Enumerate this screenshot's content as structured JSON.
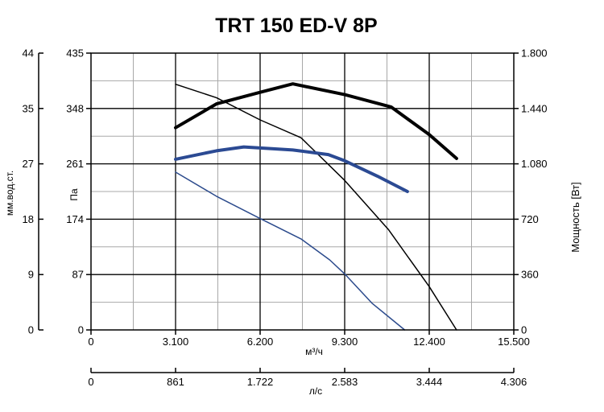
{
  "chart_data": {
    "type": "line",
    "title": "TRT 150 ED-V 8P",
    "x_axis_primary": {
      "label": "м³/ч",
      "range": [
        0,
        15500
      ],
      "ticks": [
        0,
        3100,
        6200,
        9300,
        12400,
        15500
      ],
      "tick_labels": [
        "0",
        "3.100",
        "6.200",
        "9.300",
        "12.400",
        "15.500"
      ]
    },
    "x_axis_secondary": {
      "label": "л/с",
      "tick_labels": [
        "0",
        "861",
        "1.722",
        "2.583",
        "3.444",
        "4.306"
      ]
    },
    "y_axis_left_outer": {
      "label": "мм.вод.ст.",
      "tick_labels": [
        "0",
        "9",
        "18",
        "27",
        "35",
        "44"
      ]
    },
    "y_axis_left_inner": {
      "label": "Па",
      "range": [
        0,
        435
      ],
      "ticks": [
        0,
        87,
        174,
        261,
        348,
        435
      ],
      "tick_labels": [
        "0",
        "87",
        "174",
        "261",
        "348",
        "435"
      ]
    },
    "y_axis_right": {
      "label": "Мощность [Вт]",
      "range": [
        0,
        1800
      ],
      "ticks": [
        0,
        360,
        720,
        1080,
        1440,
        1800
      ],
      "tick_labels": [
        "0",
        "360",
        "720",
        "1.080",
        "1.440",
        "1.800"
      ]
    },
    "grid": true,
    "series": [
      {
        "axis": "pressure",
        "color": "#000000",
        "width": 1.5,
        "points": [
          [
            3100,
            386
          ],
          [
            4600,
            365
          ],
          [
            6200,
            330
          ],
          [
            7700,
            302
          ],
          [
            9300,
            235
          ],
          [
            10900,
            158
          ],
          [
            12400,
            68
          ],
          [
            13400,
            0
          ]
        ]
      },
      {
        "axis": "pressure",
        "color": "#2b4a8c",
        "width": 1.5,
        "points": [
          [
            3100,
            248
          ],
          [
            4600,
            210
          ],
          [
            6200,
            175
          ],
          [
            7700,
            143
          ],
          [
            8750,
            110
          ],
          [
            9300,
            88
          ],
          [
            10300,
            42
          ],
          [
            11500,
            0
          ]
        ]
      },
      {
        "axis": "power",
        "color": "#000000",
        "width": 4,
        "points": [
          [
            3100,
            1315
          ],
          [
            4600,
            1470
          ],
          [
            6200,
            1545
          ],
          [
            7400,
            1600
          ],
          [
            9300,
            1530
          ],
          [
            11000,
            1450
          ],
          [
            12400,
            1270
          ],
          [
            13400,
            1115
          ]
        ]
      },
      {
        "axis": "power",
        "color": "#2b4a93",
        "width": 4,
        "points": [
          [
            3100,
            1110
          ],
          [
            4600,
            1165
          ],
          [
            5600,
            1190
          ],
          [
            7400,
            1170
          ],
          [
            8700,
            1140
          ],
          [
            9300,
            1100
          ],
          [
            10500,
            1000
          ],
          [
            11600,
            900
          ]
        ]
      }
    ]
  }
}
